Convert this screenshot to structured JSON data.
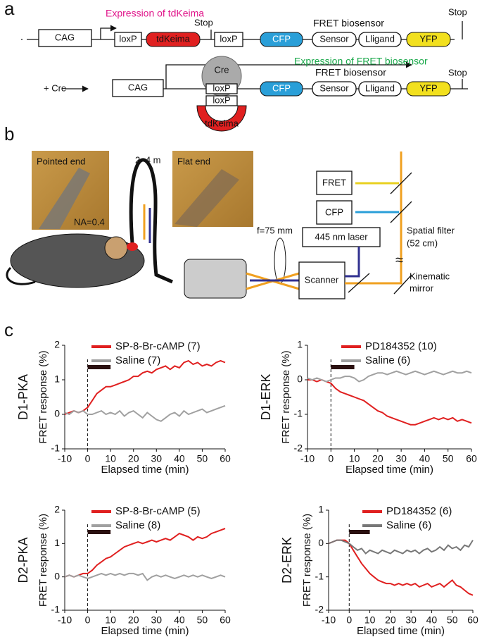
{
  "panel_a": {
    "label": "a",
    "row1": [
      "CAG",
      "Expression of tdKeima",
      "loxP",
      "tdKeima",
      "Stop",
      "loxP",
      "CFP",
      "FRET biosensor",
      "Sensor",
      "Lligand",
      "YFP",
      "Stop"
    ],
    "row2": [
      "+ Cre",
      "CAG",
      "Expression of FRET biosensor",
      "Cre",
      "loxP",
      "loxP",
      "tdKeima",
      "CFP",
      "FRET biosensor",
      "Sensor",
      "Lligand",
      "YFP",
      "Stop"
    ]
  },
  "panel_b": {
    "label": "b",
    "texts": [
      "Pointed end",
      "NA=0.4",
      "2~4 m",
      "Flat end",
      "FRET",
      "CFP",
      "445 nm laser",
      "Spatial filter",
      "(52 cm)",
      "≈",
      "f=75 mm",
      "Scanner",
      "Kinematic",
      "mirror"
    ]
  },
  "panel_c": {
    "label": "c"
  },
  "chart_data": [
    {
      "type": "line",
      "title": "D1-PKA",
      "xlabel": "Elapsed time (min)",
      "ylabel": "FRET response (%)",
      "xlim": [
        -10,
        60
      ],
      "xticks": [
        -10,
        0,
        10,
        20,
        30,
        40,
        50,
        60
      ],
      "ylim": [
        -1,
        2
      ],
      "yticks": [
        -1,
        0,
        1,
        2
      ],
      "marker_x": 0,
      "application": [
        0,
        10
      ],
      "x": [
        -10,
        -8,
        -6,
        -4,
        -2,
        0,
        2,
        4,
        6,
        8,
        10,
        12,
        14,
        16,
        18,
        20,
        22,
        24,
        26,
        28,
        30,
        32,
        34,
        36,
        38,
        40,
        42,
        44,
        46,
        48,
        50,
        52,
        54,
        56,
        58,
        60
      ],
      "series": [
        {
          "name": "SP-8-Br-cAMP (7)",
          "color": "#e02020",
          "values": [
            0,
            0.05,
            0.1,
            0.05,
            0.1,
            0.2,
            0.4,
            0.6,
            0.7,
            0.8,
            0.8,
            0.85,
            0.9,
            0.95,
            1.0,
            1.1,
            1.1,
            1.2,
            1.25,
            1.2,
            1.3,
            1.35,
            1.4,
            1.3,
            1.4,
            1.35,
            1.5,
            1.55,
            1.45,
            1.5,
            1.4,
            1.45,
            1.4,
            1.5,
            1.55,
            1.5
          ]
        },
        {
          "name": "Saline (7)",
          "color": "#a0a0a0",
          "values": [
            0.05,
            0,
            0.1,
            0.05,
            0.1,
            0,
            0,
            0.05,
            0.1,
            0,
            0.05,
            0,
            0.1,
            -0.05,
            0.05,
            0.1,
            0,
            -0.1,
            0.05,
            -0.05,
            -0.15,
            -0.2,
            -0.1,
            0,
            0.05,
            -0.05,
            0.1,
            0,
            0.05,
            0.1,
            0.15,
            0.05,
            0.1,
            0.15,
            0.2,
            0.25
          ]
        }
      ]
    },
    {
      "type": "line",
      "title": "D1-ERK",
      "xlabel": "Elapsed time (min)",
      "ylabel": "FRET response (%)",
      "xlim": [
        -10,
        60
      ],
      "xticks": [
        -10,
        0,
        10,
        20,
        30,
        40,
        50,
        60
      ],
      "ylim": [
        -2,
        1
      ],
      "yticks": [
        -2,
        -1,
        0,
        1
      ],
      "marker_x": 0,
      "application": [
        0,
        10
      ],
      "x": [
        -10,
        -8,
        -6,
        -4,
        -2,
        0,
        2,
        4,
        6,
        8,
        10,
        12,
        14,
        16,
        18,
        20,
        22,
        24,
        26,
        28,
        30,
        32,
        34,
        36,
        38,
        40,
        42,
        44,
        46,
        48,
        50,
        52,
        54,
        56,
        58,
        60
      ],
      "series": [
        {
          "name": "PD184352 (10)",
          "color": "#e02020",
          "values": [
            0,
            0,
            -0.05,
            0,
            -0.05,
            -0.1,
            -0.25,
            -0.35,
            -0.4,
            -0.45,
            -0.5,
            -0.55,
            -0.6,
            -0.7,
            -0.8,
            -0.9,
            -0.95,
            -1.05,
            -1.1,
            -1.15,
            -1.2,
            -1.25,
            -1.3,
            -1.3,
            -1.25,
            -1.2,
            -1.15,
            -1.1,
            -1.15,
            -1.1,
            -1.15,
            -1.1,
            -1.2,
            -1.15,
            -1.2,
            -1.25
          ]
        },
        {
          "name": "Saline (6)",
          "color": "#a0a0a0",
          "values": [
            0.05,
            0,
            0.05,
            0,
            -0.05,
            0,
            0.05,
            0.05,
            0.1,
            0.1,
            0.05,
            -0.05,
            0,
            0.1,
            0.15,
            0.2,
            0.2,
            0.15,
            0.2,
            0.25,
            0.2,
            0.15,
            0.2,
            0.25,
            0.2,
            0.15,
            0.2,
            0.25,
            0.2,
            0.15,
            0.2,
            0.25,
            0.2,
            0.2,
            0.25,
            0.2
          ]
        }
      ]
    },
    {
      "type": "line",
      "title": "D2-PKA",
      "xlabel": "Elapsed time (min)",
      "ylabel": "FRET response (%)",
      "xlim": [
        -10,
        60
      ],
      "xticks": [
        -10,
        0,
        10,
        20,
        30,
        40,
        50,
        60
      ],
      "ylim": [
        -1,
        2
      ],
      "yticks": [
        -1,
        0,
        1,
        2
      ],
      "marker_x": 0,
      "application": [
        0,
        10
      ],
      "x": [
        -10,
        -8,
        -6,
        -4,
        -2,
        0,
        2,
        4,
        6,
        8,
        10,
        12,
        14,
        16,
        18,
        20,
        22,
        24,
        26,
        28,
        30,
        32,
        34,
        36,
        38,
        40,
        42,
        44,
        46,
        48,
        50,
        52,
        54,
        56,
        58,
        60
      ],
      "series": [
        {
          "name": "SP-8-Br-cAMP (5)",
          "color": "#e02020",
          "values": [
            0,
            0.05,
            0,
            0.05,
            0.1,
            0.1,
            0.2,
            0.35,
            0.45,
            0.55,
            0.6,
            0.7,
            0.8,
            0.9,
            0.95,
            1.0,
            1.05,
            1.0,
            1.05,
            1.1,
            1.05,
            1.1,
            1.15,
            1.1,
            1.2,
            1.3,
            1.25,
            1.2,
            1.1,
            1.2,
            1.15,
            1.2,
            1.3,
            1.35,
            1.4,
            1.45
          ]
        },
        {
          "name": "Saline (8)",
          "color": "#a0a0a0",
          "values": [
            0,
            0.05,
            0,
            0.05,
            0,
            -0.05,
            0,
            0.05,
            0.1,
            0.05,
            0.1,
            0.05,
            0.1,
            0.05,
            0.1,
            0.1,
            0.05,
            0.1,
            -0.1,
            0,
            0.05,
            0,
            0.05,
            0,
            -0.05,
            0,
            0.05,
            0,
            0.05,
            0,
            0.05,
            0,
            -0.05,
            0,
            0.05,
            0
          ]
        }
      ]
    },
    {
      "type": "line",
      "title": "D2-ERK",
      "xlabel": "Elapsed time (min)",
      "ylabel": "FRET response (%)",
      "xlim": [
        -10,
        60
      ],
      "xticks": [
        -10,
        0,
        10,
        20,
        30,
        40,
        50,
        60
      ],
      "ylim": [
        -2,
        1
      ],
      "yticks": [
        -2,
        -1,
        0,
        1
      ],
      "marker_x": 0,
      "application": [
        0,
        10
      ],
      "x": [
        -10,
        -8,
        -6,
        -4,
        -2,
        0,
        2,
        4,
        6,
        8,
        10,
        12,
        14,
        16,
        18,
        20,
        22,
        24,
        26,
        28,
        30,
        32,
        34,
        36,
        38,
        40,
        42,
        44,
        46,
        48,
        50,
        52,
        54,
        56,
        58,
        60
      ],
      "series": [
        {
          "name": "PD184352 (6)",
          "color": "#e02020",
          "values": [
            0,
            0.05,
            0.1,
            0.1,
            0.1,
            0,
            -0.2,
            -0.4,
            -0.6,
            -0.75,
            -0.9,
            -1.0,
            -1.1,
            -1.15,
            -1.2,
            -1.2,
            -1.25,
            -1.2,
            -1.25,
            -1.2,
            -1.25,
            -1.2,
            -1.3,
            -1.25,
            -1.2,
            -1.3,
            -1.25,
            -1.2,
            -1.3,
            -1.2,
            -1.1,
            -1.25,
            -1.3,
            -1.4,
            -1.5,
            -1.55
          ]
        },
        {
          "name": "Saline (6)",
          "color": "#777777",
          "values": [
            0,
            0.05,
            0.1,
            0.1,
            0.05,
            0,
            -0.1,
            -0.2,
            -0.15,
            -0.3,
            -0.2,
            -0.25,
            -0.3,
            -0.2,
            -0.25,
            -0.3,
            -0.2,
            -0.25,
            -0.3,
            -0.2,
            -0.25,
            -0.2,
            -0.3,
            -0.2,
            -0.15,
            -0.25,
            -0.2,
            -0.1,
            -0.2,
            -0.05,
            -0.15,
            -0.1,
            -0.2,
            -0.05,
            -0.1,
            0.1
          ]
        }
      ]
    }
  ]
}
